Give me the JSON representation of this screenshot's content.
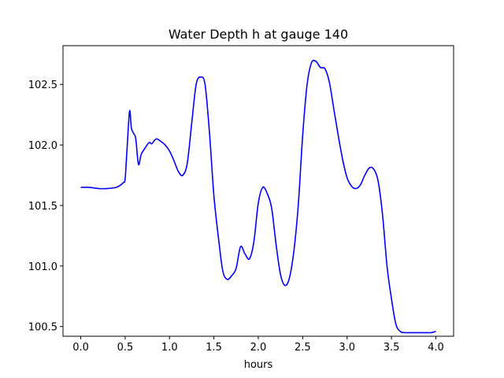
{
  "chart_data": {
    "type": "line",
    "title": "Water Depth h at gauge 140",
    "xlabel": "hours",
    "ylabel": "",
    "xlim": [
      -0.2,
      4.2
    ],
    "ylim": [
      100.42,
      102.82
    ],
    "xticks": [
      0.0,
      0.5,
      1.0,
      1.5,
      2.0,
      2.5,
      3.0,
      3.5,
      4.0
    ],
    "xtick_labels": [
      "0.0",
      "0.5",
      "1.0",
      "1.5",
      "2.0",
      "2.5",
      "3.0",
      "3.5",
      "4.0"
    ],
    "yticks": [
      100.5,
      101.0,
      101.5,
      102.0,
      102.5
    ],
    "ytick_labels": [
      "100.5",
      "101.0",
      "101.5",
      "102.0",
      "102.5"
    ],
    "grid": false,
    "legend": false,
    "series": [
      {
        "color": "#0000ff",
        "x": [
          0.0,
          0.1,
          0.2,
          0.3,
          0.4,
          0.45,
          0.48,
          0.5,
          0.52,
          0.55,
          0.57,
          0.6,
          0.62,
          0.65,
          0.68,
          0.72,
          0.77,
          0.8,
          0.85,
          0.9,
          0.95,
          1.0,
          1.05,
          1.1,
          1.15,
          1.2,
          1.25,
          1.3,
          1.35,
          1.4,
          1.45,
          1.5,
          1.55,
          1.6,
          1.65,
          1.7,
          1.75,
          1.8,
          1.85,
          1.9,
          1.95,
          2.0,
          2.05,
          2.1,
          2.15,
          2.2,
          2.25,
          2.3,
          2.35,
          2.4,
          2.45,
          2.5,
          2.55,
          2.6,
          2.65,
          2.7,
          2.75,
          2.8,
          2.85,
          2.9,
          2.95,
          3.0,
          3.05,
          3.1,
          3.15,
          3.2,
          3.25,
          3.3,
          3.35,
          3.4,
          3.45,
          3.5,
          3.55,
          3.6,
          3.65,
          3.7,
          3.75,
          3.8,
          3.85,
          3.9,
          3.95,
          4.0
        ],
        "y": [
          101.65,
          101.65,
          101.64,
          101.64,
          101.65,
          101.67,
          101.69,
          101.72,
          101.95,
          102.28,
          102.14,
          102.09,
          102.05,
          101.84,
          101.92,
          101.97,
          102.02,
          102.01,
          102.05,
          102.03,
          102.0,
          101.95,
          101.87,
          101.78,
          101.75,
          101.85,
          102.18,
          102.5,
          102.56,
          102.5,
          102.1,
          101.58,
          101.24,
          100.96,
          100.89,
          100.92,
          100.98,
          101.16,
          101.1,
          101.06,
          101.2,
          101.52,
          101.65,
          101.6,
          101.48,
          101.18,
          100.93,
          100.84,
          100.9,
          101.12,
          101.5,
          102.08,
          102.5,
          102.68,
          102.69,
          102.64,
          102.63,
          102.52,
          102.3,
          102.08,
          101.88,
          101.73,
          101.66,
          101.64,
          101.67,
          101.75,
          101.81,
          101.8,
          101.7,
          101.42,
          101.0,
          100.73,
          100.52,
          100.46,
          100.45,
          100.45,
          100.45,
          100.45,
          100.45,
          100.45,
          100.45,
          100.46
        ]
      }
    ]
  }
}
